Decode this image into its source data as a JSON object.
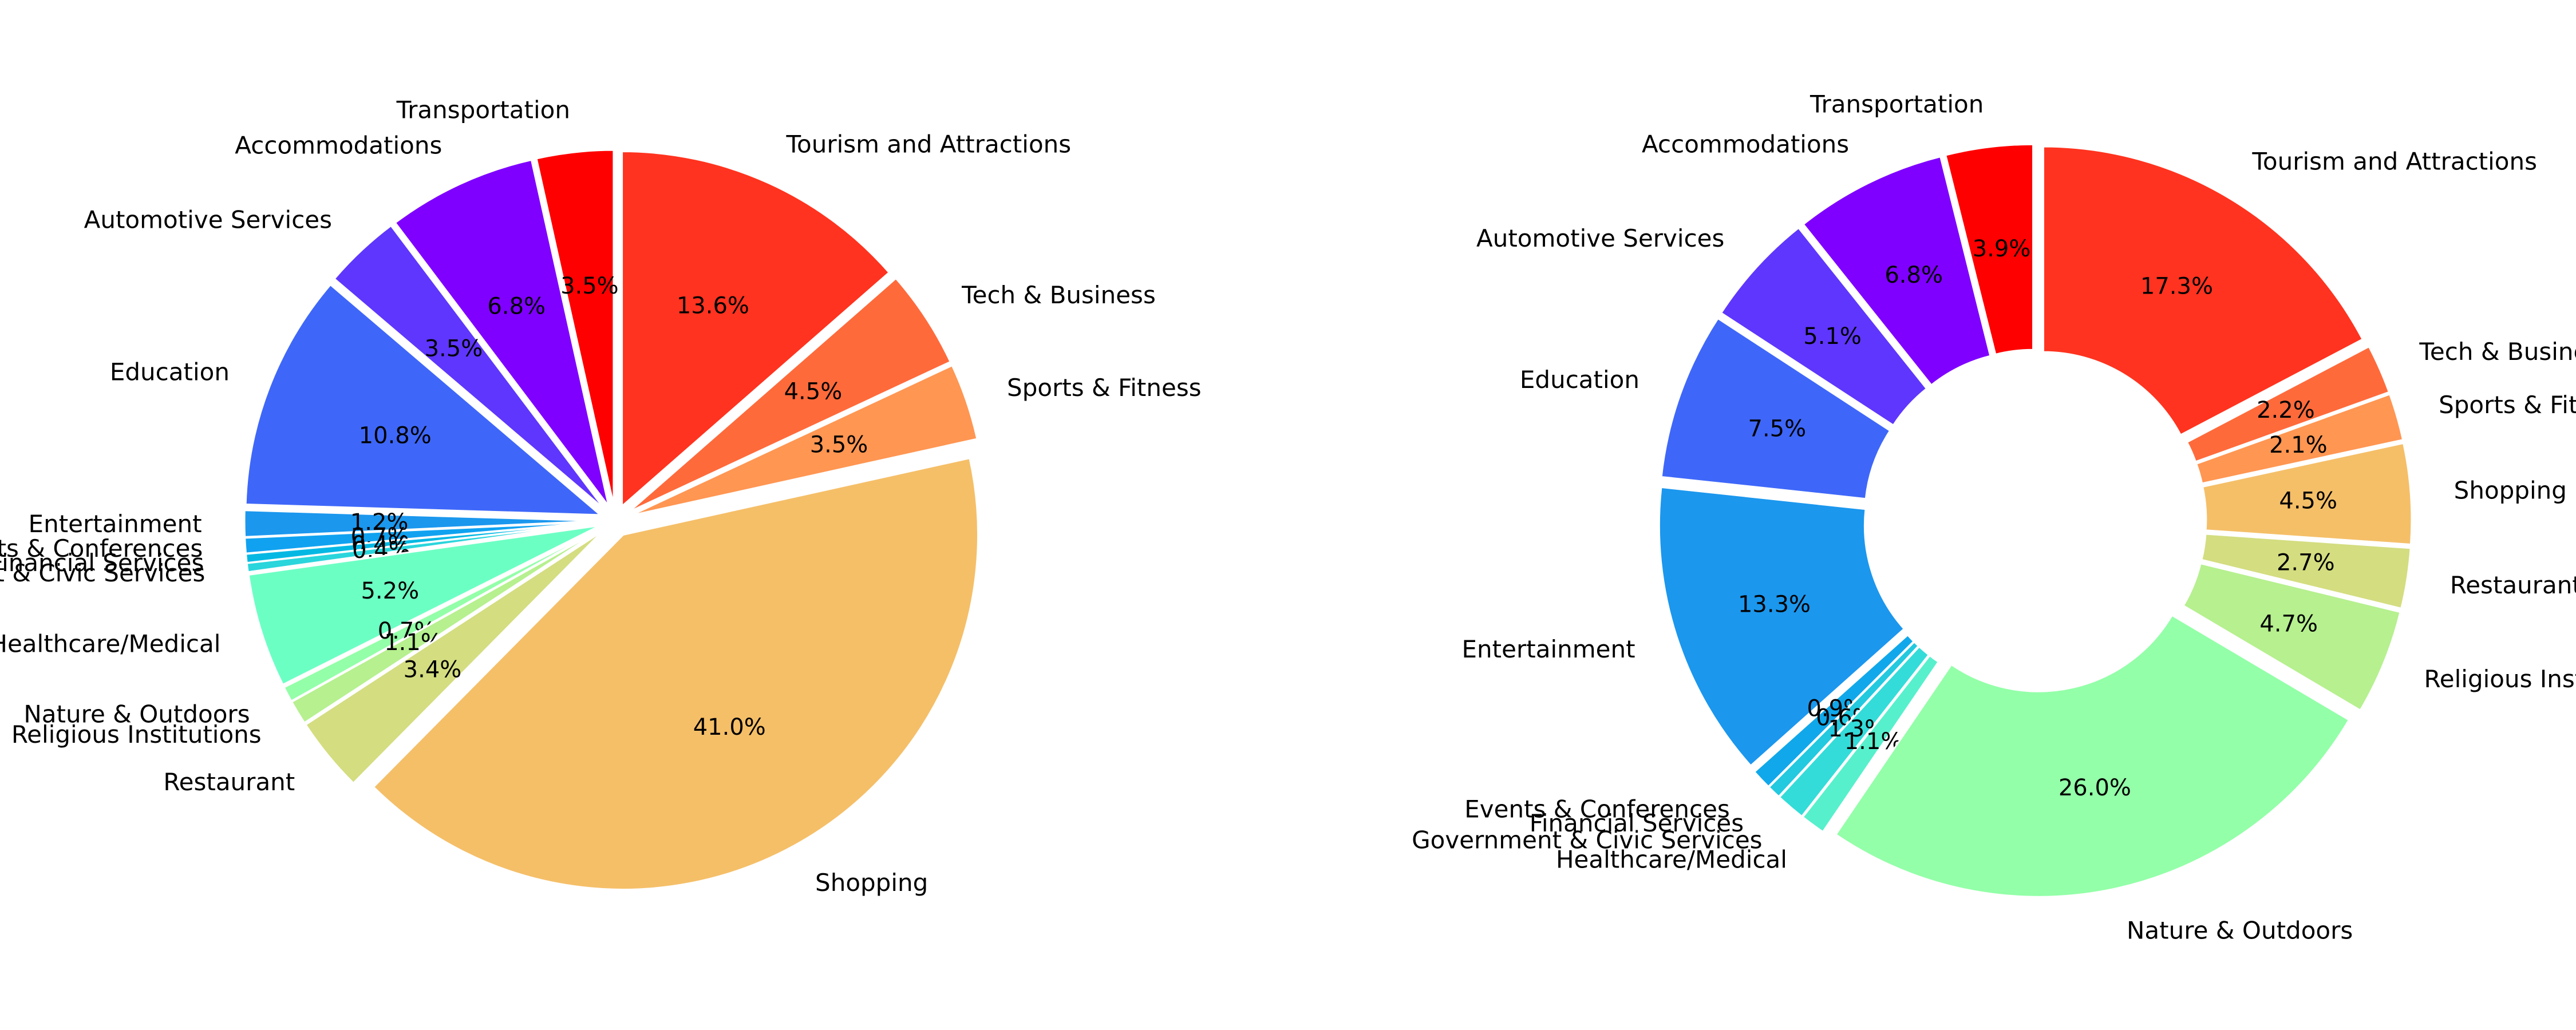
{
  "chart_data": [
    {
      "type": "pie",
      "title": "",
      "start_angle_deg": 90,
      "hole_ratio": 0,
      "slices": [
        {
          "label": "Transportation",
          "value": 3.5,
          "pct_label": "3.5%",
          "color": "#ff0000"
        },
        {
          "label": "Accommodations",
          "value": 6.8,
          "pct_label": "6.8%",
          "color": "#7f00ff"
        },
        {
          "label": "Automotive Services",
          "value": 3.5,
          "pct_label": "3.5%",
          "color": "#5f36fd"
        },
        {
          "label": "Education",
          "value": 10.8,
          "pct_label": "10.8%",
          "color": "#3e67f9"
        },
        {
          "label": "Entertainment",
          "value": 1.2,
          "pct_label": "1.2%",
          "color": "#1b97ee"
        },
        {
          "label": "Events & Conferences",
          "value": 0.7,
          "pct_label": "0.7%",
          "color": "#10a2f0"
        },
        {
          "label": "Financial Services",
          "value": 0.4,
          "pct_label": "0.4%",
          "color": "#05b8e3"
        },
        {
          "label": "Government & Civic Services",
          "value": 0.4,
          "pct_label": "0.4%",
          "color": "#2ad5dc"
        },
        {
          "label": "Healthcare/Medical",
          "value": 5.2,
          "pct_label": "5.2%",
          "color": "#6cffc4"
        },
        {
          "label": "Nature & Outdoors",
          "value": 0.7,
          "pct_label": "0.7%",
          "color": "#93ffa8"
        },
        {
          "label": "Religious Institutions",
          "value": 1.1,
          "pct_label": "1.1%",
          "color": "#b6f08f"
        },
        {
          "label": "Restaurant",
          "value": 3.4,
          "pct_label": "3.4%",
          "color": "#d4dd80"
        },
        {
          "label": "Shopping",
          "value": 41.0,
          "pct_label": "41.0%",
          "color": "#f5bf68"
        },
        {
          "label": "Sports & Fitness",
          "value": 3.5,
          "pct_label": "3.5%",
          "color": "#ff9652"
        },
        {
          "label": "Tech & Business",
          "value": 4.5,
          "pct_label": "4.5%",
          "color": "#ff6a3b"
        },
        {
          "label": "Tourism and Attractions",
          "value": 13.6,
          "pct_label": "13.6%",
          "color": "#ff331f"
        }
      ]
    },
    {
      "type": "pie",
      "title": "",
      "start_angle_deg": 90,
      "hole_ratio": 0.43,
      "slices": [
        {
          "label": "Transportation",
          "value": 3.9,
          "pct_label": "3.9%",
          "color": "#ff0000"
        },
        {
          "label": "Accommodations",
          "value": 6.8,
          "pct_label": "6.8%",
          "color": "#7f00ff"
        },
        {
          "label": "Automotive Services",
          "value": 5.1,
          "pct_label": "5.1%",
          "color": "#5f36fd"
        },
        {
          "label": "Education",
          "value": 7.5,
          "pct_label": "7.5%",
          "color": "#3e67f9"
        },
        {
          "label": "Entertainment",
          "value": 13.3,
          "pct_label": "13.3%",
          "color": "#1b97ee"
        },
        {
          "label": "Events & Conferences",
          "value": 0.9,
          "pct_label": "0.9%",
          "color": "#10a8ea"
        },
        {
          "label": "Financial Services",
          "value": 0.6,
          "pct_label": "0.6%",
          "color": "#22c9df"
        },
        {
          "label": "Government & Civic Services",
          "value": 1.3,
          "pct_label": "1.3%",
          "color": "#33dcd8"
        },
        {
          "label": "Healthcare/Medical",
          "value": 1.1,
          "pct_label": "1.1%",
          "color": "#56f0cc"
        },
        {
          "label": "Nature & Outdoors",
          "value": 26.0,
          "pct_label": "26.0%",
          "color": "#93ffa8"
        },
        {
          "label": "Religious Institutions",
          "value": 4.7,
          "pct_label": "4.7%",
          "color": "#b6f08f"
        },
        {
          "label": "Restaurant",
          "value": 2.7,
          "pct_label": "2.7%",
          "color": "#d4dd80"
        },
        {
          "label": "Shopping",
          "value": 4.5,
          "pct_label": "4.5%",
          "color": "#f5bf68"
        },
        {
          "label": "Sports & Fitness",
          "value": 2.1,
          "pct_label": "2.1%",
          "color": "#ff9652"
        },
        {
          "label": "Tech & Business",
          "value": 2.2,
          "pct_label": "2.2%",
          "color": "#ff6a3b"
        },
        {
          "label": "Tourism and Attractions",
          "value": 17.3,
          "pct_label": "17.3%",
          "color": "#ff331f"
        }
      ]
    }
  ]
}
